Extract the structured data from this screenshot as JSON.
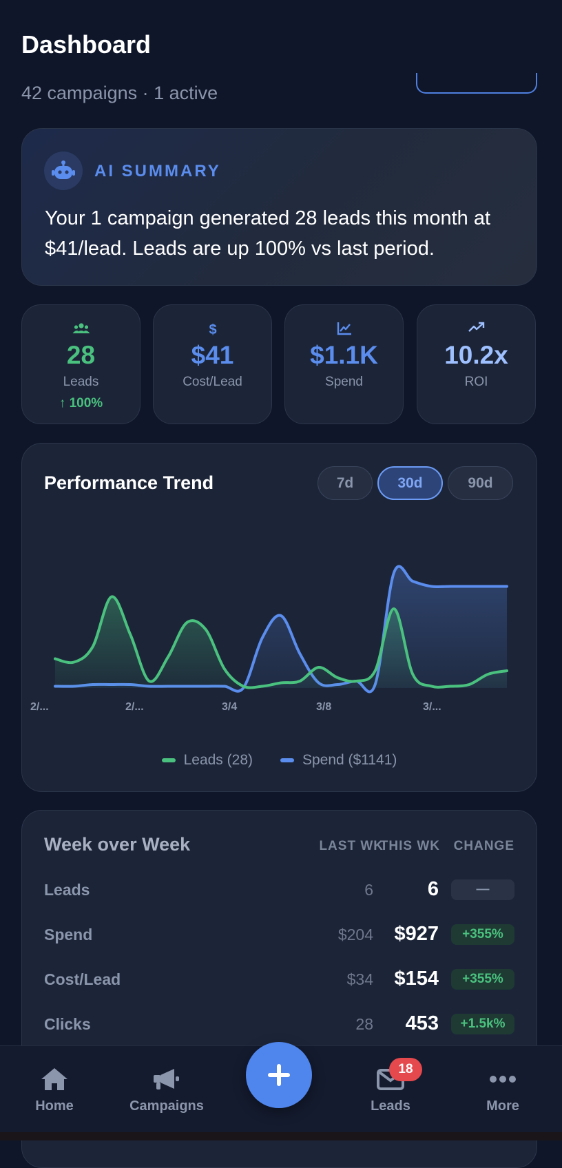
{
  "header": {
    "title": "Dashboard",
    "subtitle": "42 campaigns · 1 active"
  },
  "ai_summary": {
    "label": "AI SUMMARY",
    "text": "Your 1 campaign generated 28 leads this month at $41/lead. Leads are up 100% vs last period.",
    "icon": "robot-icon"
  },
  "stats": [
    {
      "icon": "users-icon",
      "value": "28",
      "label": "Leads",
      "change": "↑ 100%",
      "color": "#4ac17e"
    },
    {
      "icon": "dollar-icon",
      "value": "$41",
      "label": "Cost/Lead",
      "color": "#5b8dee"
    },
    {
      "icon": "chart-line-icon",
      "value": "$1.1K",
      "label": "Spend",
      "color": "#5b8dee"
    },
    {
      "icon": "trending-up-icon",
      "value": "10.2x",
      "label": "ROI",
      "color": "#9fc0ff"
    }
  ],
  "trend": {
    "title": "Performance Trend",
    "ranges": [
      "7d",
      "30d",
      "90d"
    ],
    "active_range": "30d",
    "x_ticks": [
      "2/...",
      "2/...",
      "3/4",
      "3/8",
      "3/..."
    ],
    "legend": [
      {
        "label": "Leads (28)",
        "color": "#4ac17e"
      },
      {
        "label": "Spend ($1141)",
        "color": "#5b8dee"
      }
    ]
  },
  "chart_data": {
    "type": "area",
    "x_tick_labels": [
      "2/...",
      "2/...",
      "3/4",
      "3/8",
      "3/..."
    ],
    "grid": false,
    "legend_position": "bottom",
    "series": [
      {
        "name": "Leads (28)",
        "color": "#4ac17e",
        "values": [
          1.7,
          1.5,
          2.4,
          5.3,
          3.1,
          0.4,
          1.8,
          3.8,
          3.4,
          1.1,
          0.1,
          0.1,
          0.3,
          0.4,
          1.2,
          0.6,
          0.4,
          1.0,
          4.6,
          0.8,
          0.1,
          0.1,
          0.2,
          0.8,
          1.0
        ]
      },
      {
        "name": "Spend ($1141)",
        "color": "#5b8dee",
        "values": [
          0.1,
          0.1,
          0.2,
          0.2,
          0.2,
          0.1,
          0.1,
          0.1,
          0.1,
          0.1,
          0.0,
          2.9,
          4.2,
          2.0,
          0.3,
          0.2,
          0.4,
          0.2,
          6.7,
          6.2,
          5.9,
          5.9,
          5.9,
          5.9,
          5.9
        ]
      }
    ]
  },
  "week_over_week": {
    "title": "Week over Week",
    "columns": [
      "LAST WK",
      "THIS WK",
      "CHANGE"
    ],
    "rows": [
      {
        "label": "Leads",
        "last": "6",
        "this": "6",
        "change": "—",
        "trend": "neutral"
      },
      {
        "label": "Spend",
        "last": "$204",
        "this": "$927",
        "change": "+355%",
        "trend": "up"
      },
      {
        "label": "Cost/Lead",
        "last": "$34",
        "this": "$154",
        "change": "+355%",
        "trend": "up"
      },
      {
        "label": "Clicks",
        "last": "28",
        "this": "453",
        "change": "+1.5k%",
        "trend": "up"
      }
    ]
  },
  "nav": {
    "items": [
      {
        "label": "Home",
        "icon": "home-icon"
      },
      {
        "label": "Campaigns",
        "icon": "megaphone-icon"
      },
      {
        "label": "Leads",
        "icon": "mail-icon"
      },
      {
        "label": "More",
        "icon": "more-icon"
      }
    ],
    "fab_icon": "plus-icon",
    "leads_badge": "18"
  }
}
